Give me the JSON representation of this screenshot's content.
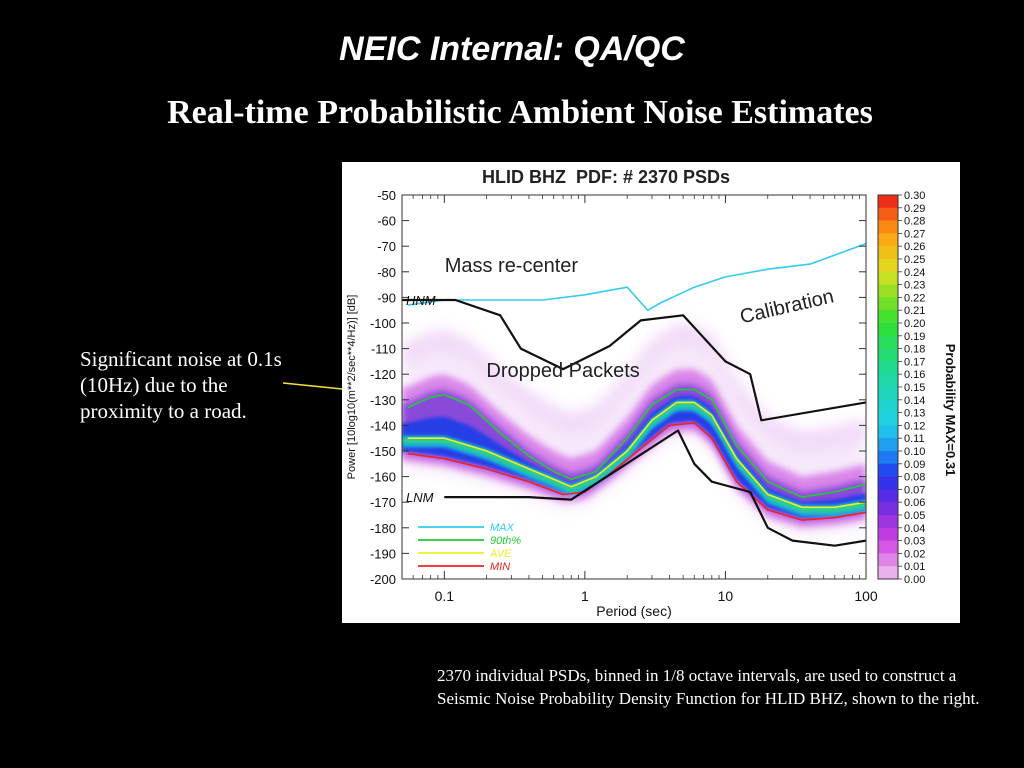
{
  "slide": {
    "title": "NEIC Internal: QA/QC",
    "subtitle": "Real-time Probabilistic Ambient Noise Estimates",
    "annotation": "Significant noise at 0.1s (10Hz) due to the proximity to a road.",
    "caption": "2370 individual PSDs, binned in 1/8 octave intervals, are used to construct a Seismic Noise Probability Density Function for HLID BHZ, shown to the right."
  },
  "chart_data": {
    "type": "heatmap",
    "title": "HLID BHZ  PDF: # 2370 PSDs",
    "xlabel": "Period (sec)",
    "ylabel": "Power [10log10(m**2/sec**4/Hz)] [dB]",
    "xscale": "log",
    "xlim": [
      0.05,
      100
    ],
    "ylim": [
      -200,
      -50
    ],
    "xticks": [
      0.1,
      1,
      10,
      100
    ],
    "xtick_labels": [
      "0.1",
      "1",
      "10",
      "100"
    ],
    "yticks": [
      -50,
      -60,
      -70,
      -80,
      -90,
      -100,
      -110,
      -120,
      -130,
      -140,
      -150,
      -160,
      -170,
      -180,
      -190,
      -200
    ],
    "ytick_labels": [
      "-50",
      "-60",
      "-70",
      "-80",
      "-90",
      "-100",
      "-110",
      "-120",
      "-130",
      "-140",
      "-150",
      "-160",
      "-170",
      "-180",
      "-190",
      "-200"
    ],
    "colorbar": {
      "label": "Probability MAX=0.31",
      "min": 0.0,
      "max": 0.3,
      "tick_labels": [
        "0.30",
        "0.29",
        "0.28",
        "0.27",
        "0.26",
        "0.25",
        "0.24",
        "0.23",
        "0.22",
        "0.21",
        "0.20",
        "0.19",
        "0.18",
        "0.17",
        "0.16",
        "0.15",
        "0.14",
        "0.13",
        "0.12",
        "0.11",
        "0.10",
        "0.09",
        "0.08",
        "0.07",
        "0.06",
        "0.05",
        "0.04",
        "0.03",
        "0.02",
        "0.01",
        "0.00"
      ]
    },
    "reference_models": {
      "HNM": {
        "label": "HNM",
        "x": [
          0.05,
          0.12,
          0.25,
          0.35,
          0.7,
          1.5,
          2.5,
          5.0,
          10.0,
          15.0,
          18.0,
          100.0
        ],
        "y": [
          -91,
          -91,
          -97,
          -110,
          -118,
          -109,
          -99,
          -97,
          -115,
          -120,
          -138,
          -131
        ]
      },
      "LNM": {
        "label": "LNM",
        "x": [
          0.1,
          0.17,
          0.4,
          0.8,
          4.6,
          6.0,
          8.0,
          15.0,
          20.0,
          30.0,
          60.0,
          100.0
        ],
        "y": [
          -168,
          -168,
          -168,
          -169,
          -142,
          -155,
          -162,
          -166,
          -180,
          -185,
          -187,
          -185
        ]
      }
    },
    "series": [
      {
        "name": "MAX",
        "color": "#33ccee",
        "x": [
          0.055,
          0.1,
          0.2,
          0.5,
          1.0,
          2.0,
          2.5,
          2.8,
          3.5,
          6.0,
          10.0,
          20.0,
          40.0,
          100.0
        ],
        "y": [
          -93,
          -91,
          -91,
          -91,
          -89,
          -86,
          -92,
          -95,
          -92,
          -86,
          -82,
          -79,
          -77,
          -69
        ]
      },
      {
        "name": "90th%",
        "color": "#22cc33",
        "x": [
          0.055,
          0.08,
          0.1,
          0.15,
          0.25,
          0.4,
          0.6,
          0.8,
          1.2,
          2.0,
          3.0,
          4.5,
          6.0,
          8.0,
          12.0,
          20.0,
          35.0,
          60.0,
          100.0
        ],
        "y": [
          -133,
          -129,
          -128,
          -132,
          -143,
          -152,
          -158,
          -161,
          -158,
          -145,
          -132,
          -126,
          -126,
          -130,
          -148,
          -162,
          -168,
          -166,
          -163
        ]
      },
      {
        "name": "AVE",
        "color": "#eeee22",
        "x": [
          0.055,
          0.1,
          0.2,
          0.4,
          0.6,
          0.8,
          1.2,
          2.0,
          3.0,
          4.5,
          6.0,
          8.0,
          12.0,
          20.0,
          35.0,
          60.0,
          100.0
        ],
        "y": [
          -145,
          -145,
          -150,
          -157,
          -161,
          -164,
          -160,
          -150,
          -138,
          -131,
          -131,
          -136,
          -153,
          -167,
          -172,
          -172,
          -170
        ]
      },
      {
        "name": "MIN",
        "color": "#ee2222",
        "x": [
          0.055,
          0.1,
          0.2,
          0.4,
          0.7,
          1.0,
          1.5,
          2.5,
          4.0,
          6.0,
          8.0,
          12.0,
          20.0,
          35.0,
          60.0,
          100.0
        ],
        "y": [
          -151,
          -153,
          -157,
          -162,
          -167,
          -166,
          -159,
          -149,
          -140,
          -139,
          -145,
          -162,
          -173,
          -177,
          -176,
          -174
        ]
      }
    ],
    "annotations": [
      {
        "text": "Mass re-center",
        "x": 0.3,
        "y": -80
      },
      {
        "text": "Dropped Packets",
        "x": 0.7,
        "y": -121
      },
      {
        "text": "Calibration",
        "x": 28,
        "y": -96,
        "rotation": -13
      }
    ],
    "legend": {
      "placement": "bottom-left"
    }
  }
}
